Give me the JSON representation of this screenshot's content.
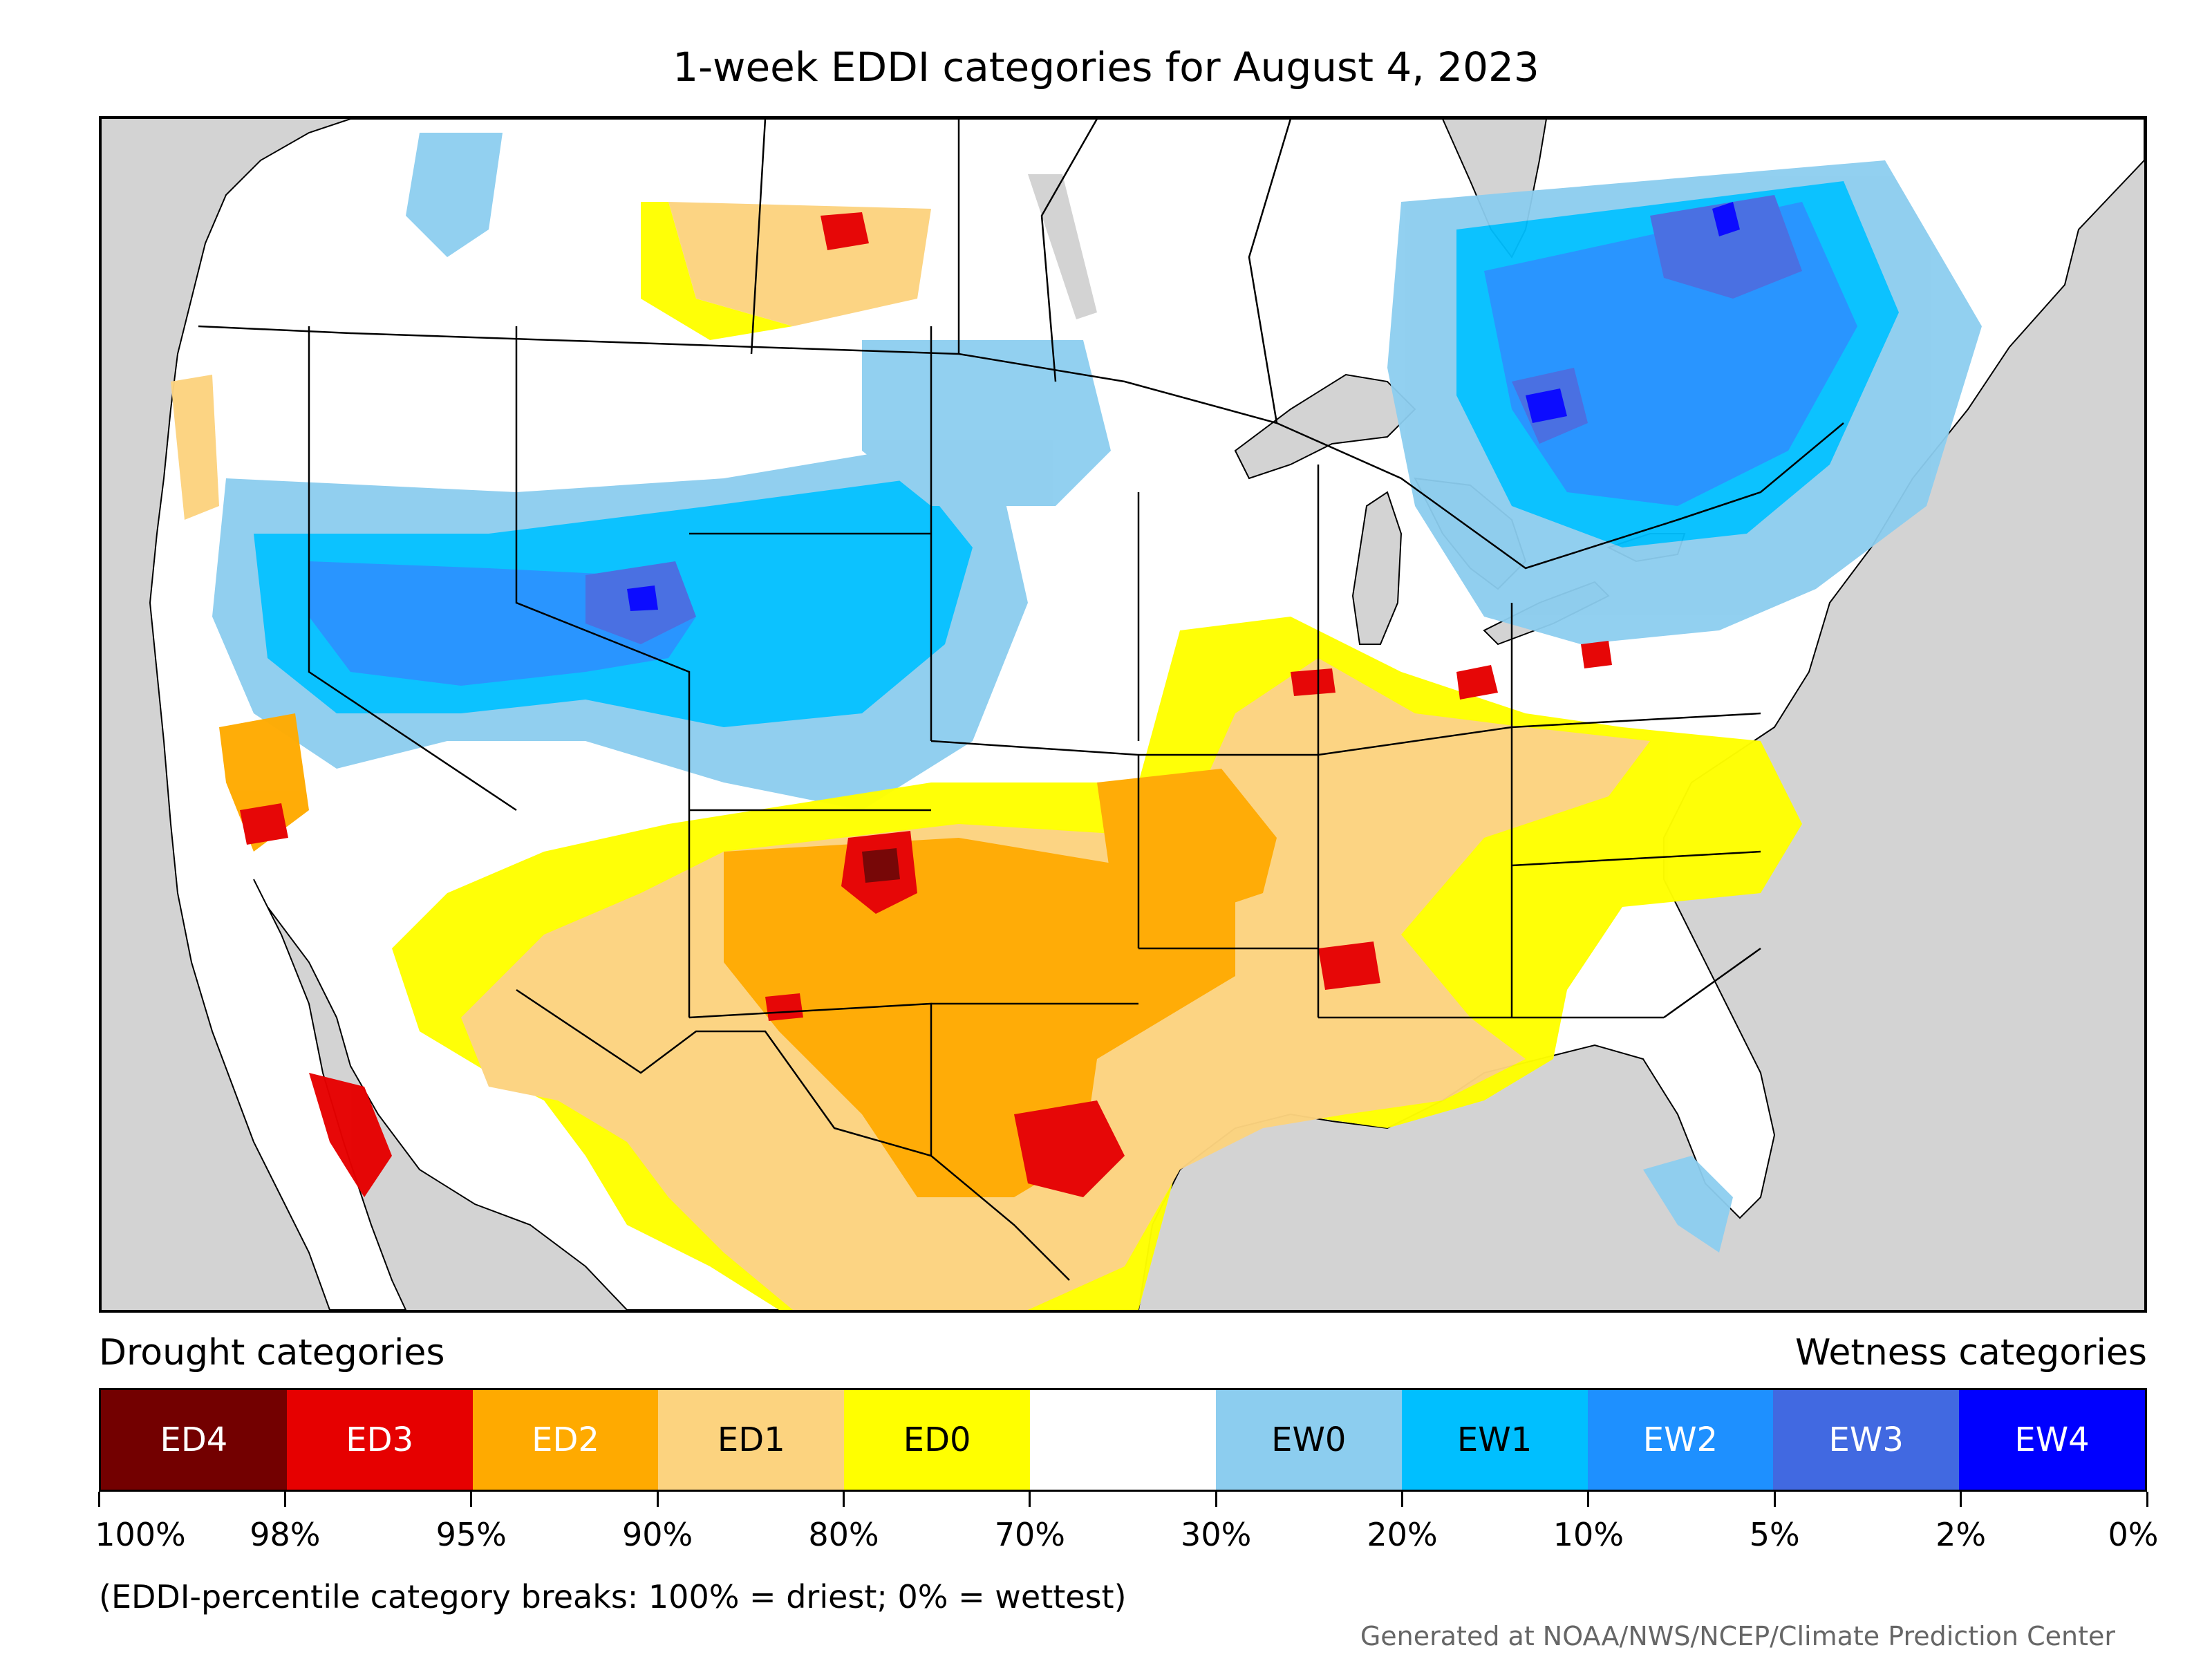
{
  "title": "1-week EDDI categories for August 4, 2023",
  "legend": {
    "drought_heading": "Drought categories",
    "wetness_heading": "Wetness categories",
    "categories": [
      {
        "label": "ED4",
        "color": "#730000",
        "text_color": "#ffffff"
      },
      {
        "label": "ED3",
        "color": "#e60000",
        "text_color": "#ffffff"
      },
      {
        "label": "ED2",
        "color": "#ffaa00",
        "text_color": "#ffffff"
      },
      {
        "label": "ED1",
        "color": "#fcd37f",
        "text_color": "#000000"
      },
      {
        "label": "ED0",
        "color": "#ffff00",
        "text_color": "#000000"
      },
      {
        "label": "",
        "color": "#ffffff",
        "text_color": "#000000"
      },
      {
        "label": "EW0",
        "color": "#8ccdef",
        "text_color": "#000000"
      },
      {
        "label": "EW1",
        "color": "#00bfff",
        "text_color": "#000000"
      },
      {
        "label": "EW2",
        "color": "#1e90ff",
        "text_color": "#ffffff"
      },
      {
        "label": "EW3",
        "color": "#4169e1",
        "text_color": "#ffffff"
      },
      {
        "label": "EW4",
        "color": "#0000ff",
        "text_color": "#ffffff"
      }
    ],
    "breaks": [
      "100%",
      "98%",
      "95%",
      "90%",
      "80%",
      "70%",
      "30%",
      "20%",
      "10%",
      "5%",
      "2%",
      "0%"
    ]
  },
  "note": "(EDDI-percentile category breaks: 100% = driest; 0% = wettest)",
  "credit": "Generated at NOAA/NWS/NCEP/Climate Prediction Center",
  "colors": {
    "ocean": "#d3d3d3",
    "land": "#ffffff",
    "border": "#000000"
  }
}
